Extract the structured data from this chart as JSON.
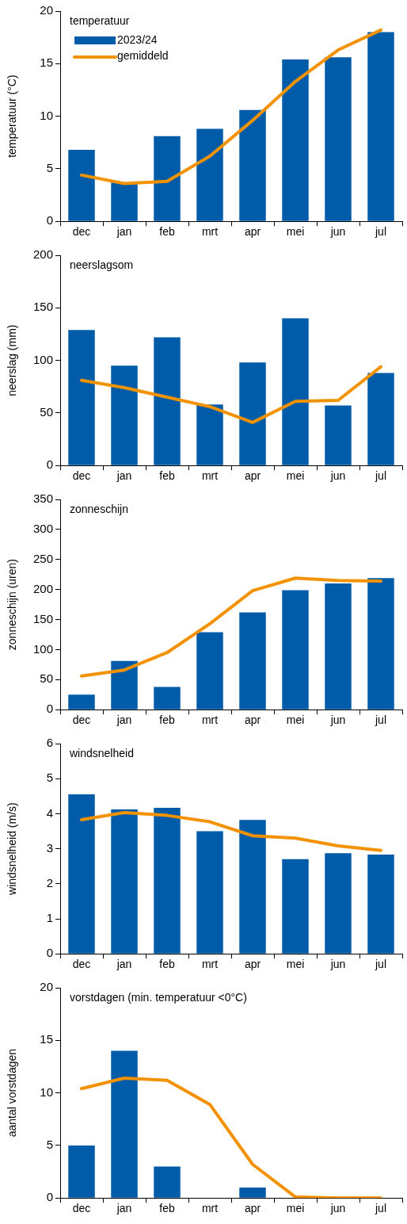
{
  "chart_data": [
    {
      "type": "bar",
      "title": "temperatuur",
      "ylabel": "temperatuur (°C)",
      "categories": [
        "dec",
        "jan",
        "feb",
        "mrt",
        "apr",
        "mei",
        "jun",
        "jul"
      ],
      "ylim": [
        0,
        20
      ],
      "yticks": [
        0,
        5,
        10,
        15,
        20
      ],
      "grid": false,
      "legend": "top left",
      "series": [
        {
          "name": "2023/24",
          "color": "#005ca9",
          "values": [
            6.8,
            3.7,
            8.1,
            8.8,
            10.6,
            15.4,
            15.6,
            18.0
          ]
        },
        {
          "name": "gemiddeld",
          "type": "line",
          "color": "#f39200",
          "values": [
            4.4,
            3.6,
            3.8,
            6.2,
            9.6,
            13.3,
            16.3,
            18.2
          ]
        }
      ]
    },
    {
      "type": "bar",
      "title": "neerslagsom",
      "ylabel": "neerslag (mm)",
      "categories": [
        "dec",
        "jan",
        "feb",
        "mrt",
        "apr",
        "mei",
        "jun",
        "jul"
      ],
      "ylim": [
        0,
        200
      ],
      "yticks": [
        0,
        50,
        100,
        150,
        200
      ],
      "grid": false,
      "series": [
        {
          "color": "#005ca9",
          "values": [
            129,
            95,
            122,
            58,
            98,
            140,
            57,
            88
          ]
        },
        {
          "type": "line",
          "color": "#f39200",
          "values": [
            81,
            74,
            65,
            56,
            41,
            61,
            62,
            94
          ]
        }
      ]
    },
    {
      "type": "bar",
      "title": "zonneschijn",
      "ylabel": "zonneschijn (uren)",
      "categories": [
        "dec",
        "jan",
        "feb",
        "mrt",
        "apr",
        "mei",
        "jun",
        "jul"
      ],
      "ylim": [
        0,
        350
      ],
      "yticks": [
        0,
        50,
        100,
        150,
        200,
        250,
        300,
        350
      ],
      "grid": false,
      "series": [
        {
          "color": "#005ca9",
          "values": [
            25,
            81,
            38,
            129,
            162,
            199,
            210,
            219
          ]
        },
        {
          "type": "line",
          "color": "#f39200",
          "values": [
            56,
            66,
            95,
            143,
            198,
            219,
            215,
            214
          ]
        }
      ]
    },
    {
      "type": "bar",
      "title": "windsnelheid",
      "ylabel": "windsnelheid (m/s)",
      "categories": [
        "dec",
        "jan",
        "feb",
        "mrt",
        "apr",
        "mei",
        "jun",
        "jul"
      ],
      "ylim": [
        0,
        6
      ],
      "yticks": [
        0,
        1,
        2,
        3,
        4,
        5,
        6
      ],
      "grid": false,
      "series": [
        {
          "color": "#005ca9",
          "values": [
            4.55,
            4.12,
            4.17,
            3.5,
            3.82,
            2.7,
            2.87,
            2.83
          ]
        },
        {
          "type": "line",
          "color": "#f39200",
          "values": [
            3.83,
            4.03,
            3.95,
            3.77,
            3.37,
            3.3,
            3.08,
            2.95
          ]
        }
      ]
    },
    {
      "type": "bar",
      "title": "vorstdagen (min. temperatuur <0°C)",
      "ylabel": "aantal vorstdagen",
      "categories": [
        "dec",
        "jan",
        "feb",
        "mrt",
        "apr",
        "mei",
        "jun",
        "jul"
      ],
      "ylim": [
        0,
        20
      ],
      "yticks": [
        0,
        5,
        10,
        15,
        20
      ],
      "grid": false,
      "series": [
        {
          "color": "#005ca9",
          "values": [
            5,
            14,
            3,
            0,
            1,
            0,
            0,
            0
          ]
        },
        {
          "type": "line",
          "color": "#f39200",
          "values": [
            10.4,
            11.4,
            11.2,
            8.9,
            3.2,
            0.1,
            0,
            0
          ]
        }
      ]
    }
  ]
}
